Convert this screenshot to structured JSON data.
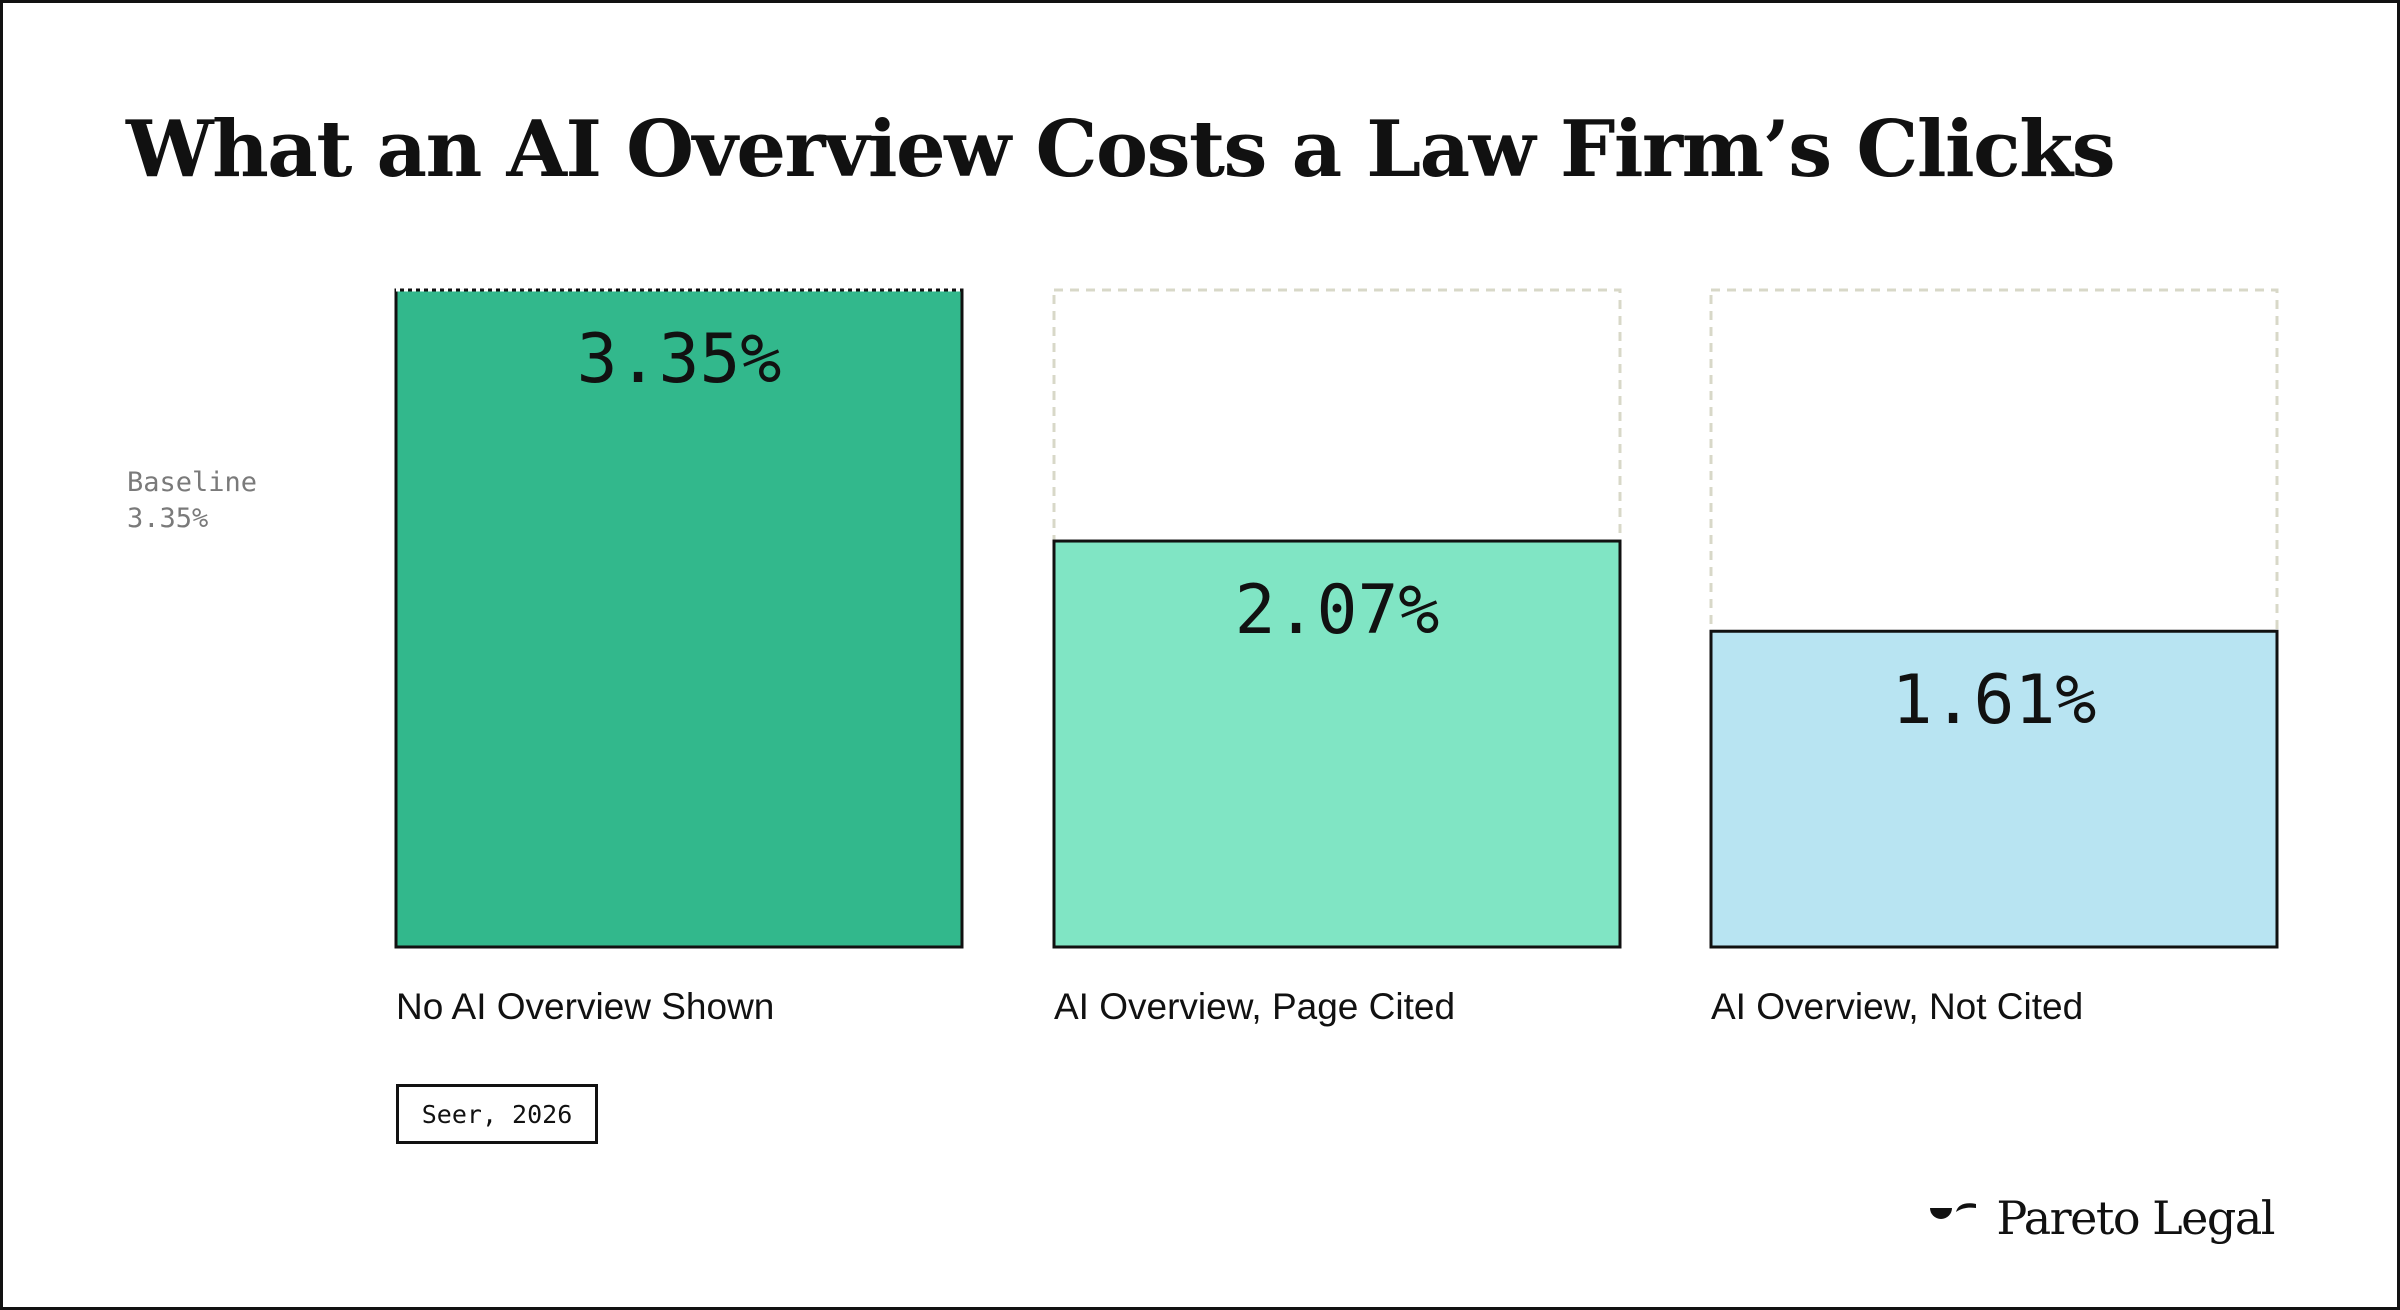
{
  "chart_data": {
    "type": "bar",
    "title": "What an AI Overview Costs a Law Firm’s Clicks",
    "categories": [
      "No AI Overview Shown",
      "AI Overview, Page Cited",
      "AI Overview, Not Cited"
    ],
    "values": [
      3.35,
      2.07,
      1.61
    ],
    "value_labels": [
      "3.35%",
      "2.07%",
      "1.61%"
    ],
    "colors": [
      "#32b88c",
      "#80e5c4",
      "#b8e4f2"
    ],
    "ylim": [
      0,
      3.35
    ],
    "baseline": {
      "label": "Baseline",
      "value_text": "3.35%",
      "value": 3.35
    },
    "grid": false,
    "xlabel": "",
    "ylabel": ""
  },
  "source": "Seer, 2026",
  "brand": {
    "name": "Pareto Legal",
    "icon": "pareto-legal-logo-icon"
  }
}
